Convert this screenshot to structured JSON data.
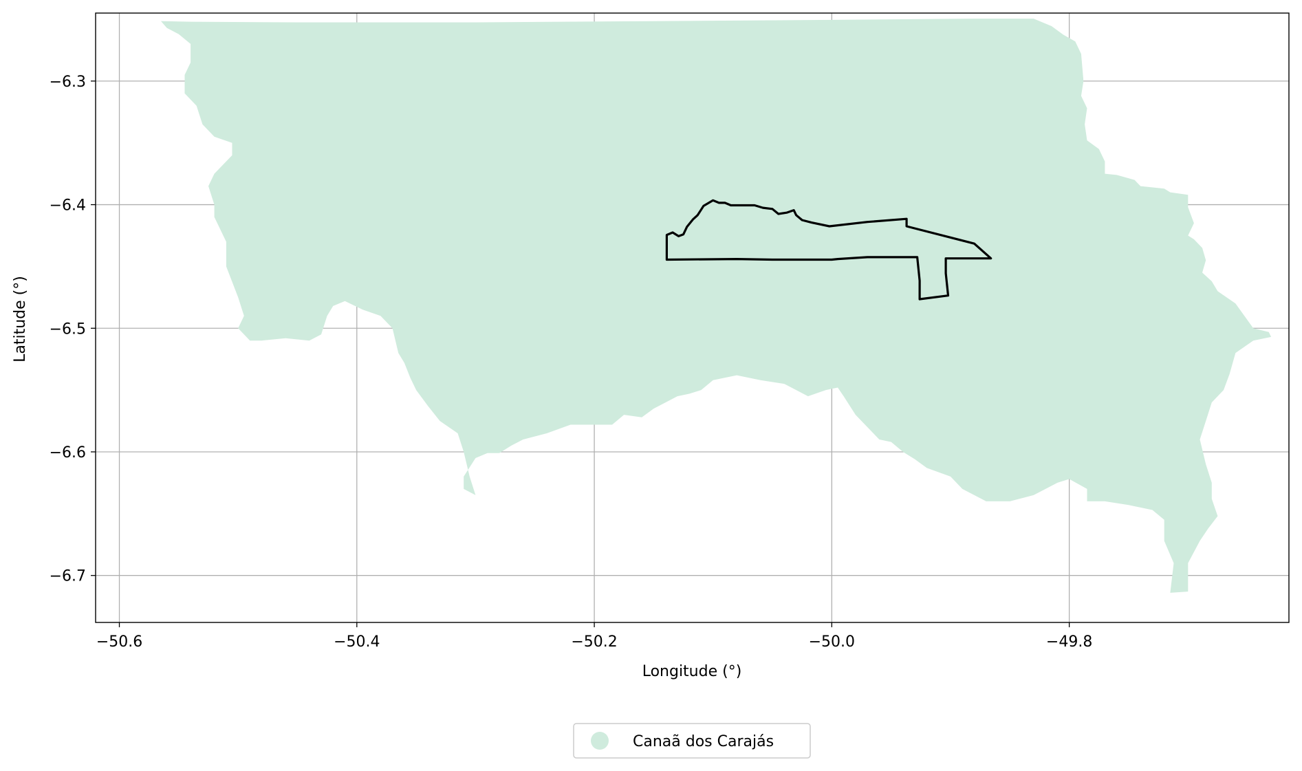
{
  "chart_data": {
    "type": "map",
    "xlabel": "Longitude (°)",
    "ylabel": "Latitude (°)",
    "xlim": [
      -50.62,
      -49.615
    ],
    "ylim": [
      -6.738,
      -6.245
    ],
    "grid": true,
    "x_ticks": [
      {
        "value": -50.6,
        "label": "−50.6"
      },
      {
        "value": -50.4,
        "label": "−50.4"
      },
      {
        "value": -50.2,
        "label": "−50.2"
      },
      {
        "value": -50.0,
        "label": "−50.0"
      },
      {
        "value": -49.8,
        "label": "−49.8"
      }
    ],
    "y_ticks": [
      {
        "value": -6.3,
        "label": "−6.3"
      },
      {
        "value": -6.4,
        "label": "−6.4"
      },
      {
        "value": -6.5,
        "label": "−6.5"
      },
      {
        "value": -6.6,
        "label": "−6.6"
      },
      {
        "value": -6.7,
        "label": "−6.7"
      }
    ],
    "legend": {
      "placement": "bottom-center",
      "entries": [
        {
          "label": "Canaã dos Carajás",
          "color": "#cfebdd"
        }
      ]
    },
    "municipality": {
      "name": "Canaã dos Carajás",
      "color": "#cfebdd",
      "boundary": [
        [
          -50.565,
          -6.2515
        ],
        [
          -50.54,
          -6.252
        ],
        [
          -50.45,
          -6.2525
        ],
        [
          -50.3,
          -6.2525
        ],
        [
          -50.15,
          -6.2515
        ],
        [
          -50.0,
          -6.2505
        ],
        [
          -49.88,
          -6.2495
        ],
        [
          -49.83,
          -6.2495
        ],
        [
          -49.815,
          -6.2555
        ],
        [
          -49.805,
          -6.2625
        ],
        [
          -49.795,
          -6.268
        ],
        [
          -49.79,
          -6.278
        ],
        [
          -49.788,
          -6.3
        ],
        [
          -49.79,
          -6.312
        ],
        [
          -49.785,
          -6.322
        ],
        [
          -49.787,
          -6.335
        ],
        [
          -49.785,
          -6.348
        ],
        [
          -49.775,
          -6.355
        ],
        [
          -49.77,
          -6.365
        ],
        [
          -49.77,
          -6.375
        ],
        [
          -49.76,
          -6.376
        ],
        [
          -49.745,
          -6.38
        ],
        [
          -49.74,
          -6.385
        ],
        [
          -49.72,
          -6.387
        ],
        [
          -49.715,
          -6.39
        ],
        [
          -49.7,
          -6.392
        ],
        [
          -49.7,
          -6.402
        ],
        [
          -49.695,
          -6.415
        ],
        [
          -49.7,
          -6.425
        ],
        [
          -49.695,
          -6.428
        ],
        [
          -49.688,
          -6.435
        ],
        [
          -49.685,
          -6.445
        ],
        [
          -49.688,
          -6.455
        ],
        [
          -49.68,
          -6.462
        ],
        [
          -49.675,
          -6.47
        ],
        [
          -49.66,
          -6.48
        ],
        [
          -49.645,
          -6.5
        ],
        [
          -49.632,
          -6.503
        ],
        [
          -49.63,
          -6.507
        ],
        [
          -49.645,
          -6.51
        ],
        [
          -49.66,
          -6.52
        ],
        [
          -49.665,
          -6.537
        ],
        [
          -49.67,
          -6.55
        ],
        [
          -49.68,
          -6.56
        ],
        [
          -49.685,
          -6.575
        ],
        [
          -49.69,
          -6.59
        ],
        [
          -49.685,
          -6.61
        ],
        [
          -49.68,
          -6.625
        ],
        [
          -49.68,
          -6.638
        ],
        [
          -49.675,
          -6.652
        ],
        [
          -49.683,
          -6.662
        ],
        [
          -49.69,
          -6.672
        ],
        [
          -49.7,
          -6.69
        ],
        [
          -49.7,
          -6.713
        ],
        [
          -49.715,
          -6.714
        ],
        [
          -49.712,
          -6.69
        ],
        [
          -49.72,
          -6.672
        ],
        [
          -49.72,
          -6.655
        ],
        [
          -49.73,
          -6.647
        ],
        [
          -49.75,
          -6.643
        ],
        [
          -49.77,
          -6.64
        ],
        [
          -49.785,
          -6.64
        ],
        [
          -49.785,
          -6.63
        ],
        [
          -49.8,
          -6.622
        ],
        [
          -49.81,
          -6.625
        ],
        [
          -49.83,
          -6.635
        ],
        [
          -49.85,
          -6.64
        ],
        [
          -49.87,
          -6.64
        ],
        [
          -49.89,
          -6.63
        ],
        [
          -49.9,
          -6.62
        ],
        [
          -49.92,
          -6.613
        ],
        [
          -49.93,
          -6.606
        ],
        [
          -49.94,
          -6.6
        ],
        [
          -49.95,
          -6.592
        ],
        [
          -49.96,
          -6.59
        ],
        [
          -49.97,
          -6.58
        ],
        [
          -49.98,
          -6.57
        ],
        [
          -49.99,
          -6.555
        ],
        [
          -49.995,
          -6.548
        ],
        [
          -50.005,
          -6.55
        ],
        [
          -50.02,
          -6.555
        ],
        [
          -50.03,
          -6.55
        ],
        [
          -50.04,
          -6.545
        ],
        [
          -50.06,
          -6.542
        ],
        [
          -50.08,
          -6.538
        ],
        [
          -50.1,
          -6.542
        ],
        [
          -50.11,
          -6.55
        ],
        [
          -50.12,
          -6.553
        ],
        [
          -50.13,
          -6.555
        ],
        [
          -50.14,
          -6.56
        ],
        [
          -50.15,
          -6.565
        ],
        [
          -50.16,
          -6.572
        ],
        [
          -50.175,
          -6.57
        ],
        [
          -50.185,
          -6.578
        ],
        [
          -50.2,
          -6.578
        ],
        [
          -50.21,
          -6.578
        ],
        [
          -50.22,
          -6.578
        ],
        [
          -50.24,
          -6.585
        ],
        [
          -50.26,
          -6.59
        ],
        [
          -50.27,
          -6.595
        ],
        [
          -50.28,
          -6.601
        ],
        [
          -50.29,
          -6.601
        ],
        [
          -50.3,
          -6.605
        ],
        [
          -50.31,
          -6.62
        ],
        [
          -50.31,
          -6.63
        ],
        [
          -50.3,
          -6.635
        ],
        [
          -50.305,
          -6.62
        ],
        [
          -50.31,
          -6.6
        ],
        [
          -50.315,
          -6.585
        ],
        [
          -50.33,
          -6.575
        ],
        [
          -50.34,
          -6.563
        ],
        [
          -50.35,
          -6.55
        ],
        [
          -50.355,
          -6.54
        ],
        [
          -50.36,
          -6.528
        ],
        [
          -50.365,
          -6.52
        ],
        [
          -50.37,
          -6.5
        ],
        [
          -50.38,
          -6.49
        ],
        [
          -50.395,
          -6.485
        ],
        [
          -50.41,
          -6.478
        ],
        [
          -50.42,
          -6.482
        ],
        [
          -50.425,
          -6.49
        ],
        [
          -50.43,
          -6.505
        ],
        [
          -50.44,
          -6.51
        ],
        [
          -50.46,
          -6.508
        ],
        [
          -50.48,
          -6.51
        ],
        [
          -50.49,
          -6.51
        ],
        [
          -50.5,
          -6.5
        ],
        [
          -50.495,
          -6.49
        ],
        [
          -50.5,
          -6.475
        ],
        [
          -50.51,
          -6.45
        ],
        [
          -50.51,
          -6.43
        ],
        [
          -50.52,
          -6.41
        ],
        [
          -50.52,
          -6.4
        ],
        [
          -50.525,
          -6.385
        ],
        [
          -50.52,
          -6.375
        ],
        [
          -50.505,
          -6.36
        ],
        [
          -50.505,
          -6.35
        ],
        [
          -50.52,
          -6.345
        ],
        [
          -50.53,
          -6.335
        ],
        [
          -50.535,
          -6.32
        ],
        [
          -50.545,
          -6.31
        ],
        [
          -50.545,
          -6.295
        ],
        [
          -50.54,
          -6.285
        ],
        [
          -50.54,
          -6.27
        ],
        [
          -50.55,
          -6.262
        ],
        [
          -50.56,
          -6.257
        ],
        [
          -50.565,
          -6.2515
        ]
      ]
    },
    "polygon_outline": {
      "color": "#000000",
      "points": [
        [
          -50.139,
          -6.4245
        ],
        [
          -50.134,
          -6.4225
        ],
        [
          -50.129,
          -6.4255
        ],
        [
          -50.125,
          -6.424
        ],
        [
          -50.122,
          -6.418
        ],
        [
          -50.117,
          -6.412
        ],
        [
          -50.113,
          -6.4085
        ],
        [
          -50.108,
          -6.401
        ],
        [
          -50.1,
          -6.3965
        ],
        [
          -50.095,
          -6.3985
        ],
        [
          -50.09,
          -6.3985
        ],
        [
          -50.085,
          -6.4005
        ],
        [
          -50.075,
          -6.4005
        ],
        [
          -50.065,
          -6.4005
        ],
        [
          -50.058,
          -6.4025
        ],
        [
          -50.05,
          -6.4035
        ],
        [
          -50.045,
          -6.4075
        ],
        [
          -50.038,
          -6.4065
        ],
        [
          -50.032,
          -6.4045
        ],
        [
          -50.03,
          -6.4085
        ],
        [
          -50.025,
          -6.4125
        ],
        [
          -50.017,
          -6.4145
        ],
        [
          -50.002,
          -6.4175
        ],
        [
          -49.97,
          -6.414
        ],
        [
          -49.937,
          -6.4115
        ],
        [
          -49.937,
          -6.4175
        ],
        [
          -49.88,
          -6.4315
        ],
        [
          -49.866,
          -6.4435
        ],
        [
          -49.904,
          -6.4435
        ],
        [
          -49.904,
          -6.4555
        ],
        [
          -49.902,
          -6.4735
        ],
        [
          -49.926,
          -6.4765
        ],
        [
          -49.926,
          -6.4615
        ],
        [
          -49.928,
          -6.4425
        ],
        [
          -49.97,
          -6.4425
        ],
        [
          -49.995,
          -6.444
        ],
        [
          -50.0,
          -6.4445
        ],
        [
          -50.05,
          -6.4445
        ],
        [
          -50.08,
          -6.444
        ],
        [
          -50.139,
          -6.4445
        ],
        [
          -50.139,
          -6.4245
        ]
      ]
    }
  }
}
